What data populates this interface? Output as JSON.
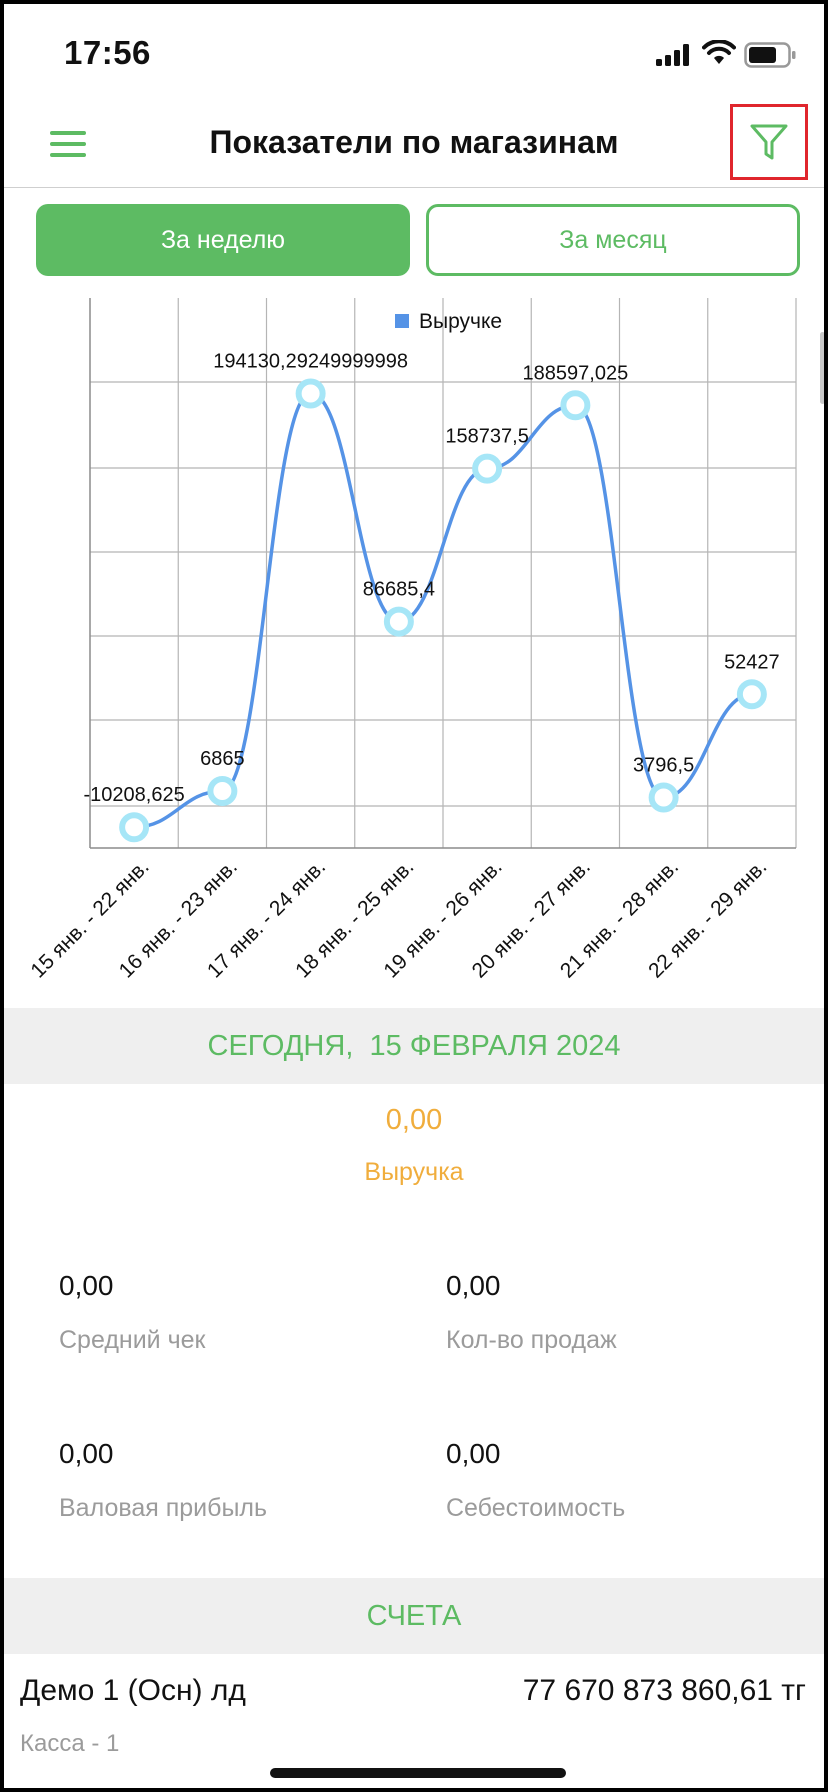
{
  "status_bar": {
    "time": "17:56"
  },
  "header": {
    "title": "Показатели по магазинам"
  },
  "period_tabs": {
    "week_label": "За неделю",
    "month_label": "За месяц"
  },
  "chart_data": {
    "type": "line",
    "legend": "Выручке",
    "legend_placement": "top-center",
    "grid": true,
    "categories": [
      "15 янв. - 22 янв.",
      "16 янв. - 23 янв.",
      "17 янв. - 24 янв.",
      "18 янв. - 25 янв.",
      "19 янв. - 26 янв.",
      "20 янв. - 27 янв.",
      "21 янв. - 28 янв.",
      "22 янв. - 29 янв."
    ],
    "values": [
      -10208.625,
      6865,
      194130.29249999998,
      86685.4,
      158737.5,
      188597.025,
      3796.5,
      52427
    ],
    "data_labels": [
      "-10208,625",
      "6865",
      "194130,29249999998",
      "86685,4",
      "158737,5",
      "188597,025",
      "3796,5",
      "52427"
    ],
    "ylim": [
      -20000,
      225000
    ],
    "line_color": "#5593e6",
    "marker_color": "#a6e6f7",
    "legend_color": "#5593e6"
  },
  "today": {
    "header": "СЕГОДНЯ,  15 ФЕВРАЛЯ 2024",
    "revenue_value": "0,00",
    "revenue_label": "Выручка",
    "stats": [
      {
        "value": "0,00",
        "label": "Средний чек"
      },
      {
        "value": "0,00",
        "label": "Кол-во продаж"
      },
      {
        "value": "0,00",
        "label": "Валовая прибыль"
      },
      {
        "value": "0,00",
        "label": "Себестоимость"
      }
    ]
  },
  "accounts": {
    "header": "СЧЕТА",
    "items": [
      {
        "name": "Демо 1 (Осн) лд",
        "amount": "77 670 873 860,61 тг",
        "sub": "Касса - 1"
      }
    ]
  },
  "colors": {
    "accent": "#5dbb63",
    "highlight": "#e0262d",
    "revenue": "#f0ad3c",
    "muted": "#9b9b9b"
  },
  "icons": {
    "menu": "hamburger-icon",
    "filter": "filter-icon"
  }
}
